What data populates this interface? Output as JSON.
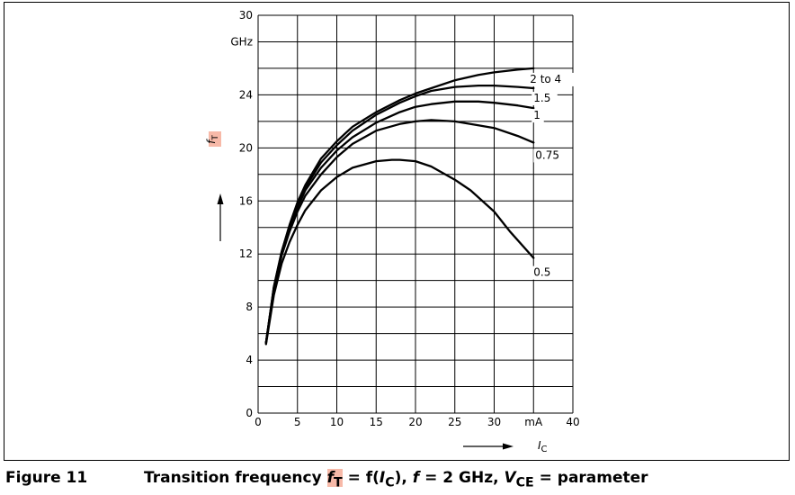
{
  "figure": {
    "label": "Figure 11",
    "title_text": "Transition frequency ",
    "title_sym": "f",
    "title_sym_sub": "T",
    "title_eq": " = f(",
    "title_ic": "I",
    "title_ic_sub": "C",
    "title_mid": "), ",
    "title_f": "f",
    "title_fval": " = 2 GHz, ",
    "title_v": "V",
    "title_v_sub": "CE",
    "title_end": " = parameter"
  },
  "chart_data": {
    "type": "line",
    "xlim": [
      0,
      40
    ],
    "ylim": [
      0,
      30
    ],
    "x_ticks": [
      "0",
      "5",
      "10",
      "15",
      "20",
      "25",
      "30",
      "mA",
      "40"
    ],
    "x_tick_values": [
      0,
      5,
      10,
      15,
      20,
      25,
      30,
      35,
      40
    ],
    "y_ticks": [
      "0",
      "4",
      "8",
      "12",
      "16",
      "20",
      "24",
      "GHz",
      "30"
    ],
    "y_tick_values": [
      0,
      4,
      8,
      12,
      16,
      20,
      24,
      28,
      30
    ],
    "ylabel_sym": "f",
    "ylabel_sub": "T",
    "xlabel_sym": "I",
    "xlabel_sub": "C",
    "grid": true,
    "series": [
      {
        "name": "2 to 4",
        "points": [
          [
            1,
            5.3
          ],
          [
            2,
            9.5
          ],
          [
            3,
            12.2
          ],
          [
            4,
            14.2
          ],
          [
            5,
            15.9
          ],
          [
            6,
            17.2
          ],
          [
            8,
            19.2
          ],
          [
            10,
            20.5
          ],
          [
            12,
            21.6
          ],
          [
            15,
            22.7
          ],
          [
            18,
            23.6
          ],
          [
            20,
            24.1
          ],
          [
            22,
            24.5
          ],
          [
            25,
            25.1
          ],
          [
            28,
            25.5
          ],
          [
            30,
            25.7
          ],
          [
            33,
            25.9
          ],
          [
            35,
            26.0
          ]
        ]
      },
      {
        "name": "1.5",
        "points": [
          [
            1,
            5.3
          ],
          [
            2,
            9.5
          ],
          [
            3,
            12.2
          ],
          [
            4,
            14.1
          ],
          [
            5,
            15.7
          ],
          [
            6,
            17.0
          ],
          [
            8,
            18.9
          ],
          [
            10,
            20.2
          ],
          [
            12,
            21.3
          ],
          [
            15,
            22.5
          ],
          [
            18,
            23.4
          ],
          [
            20,
            23.9
          ],
          [
            22,
            24.3
          ],
          [
            25,
            24.6
          ],
          [
            28,
            24.7
          ],
          [
            30,
            24.7
          ],
          [
            33,
            24.6
          ],
          [
            35,
            24.5
          ]
        ]
      },
      {
        "name": "1",
        "points": [
          [
            1,
            5.3
          ],
          [
            2,
            9.4
          ],
          [
            3,
            12.0
          ],
          [
            4,
            13.9
          ],
          [
            5,
            15.5
          ],
          [
            6,
            16.8
          ],
          [
            8,
            18.5
          ],
          [
            10,
            19.8
          ],
          [
            12,
            20.8
          ],
          [
            15,
            21.9
          ],
          [
            18,
            22.7
          ],
          [
            20,
            23.1
          ],
          [
            22,
            23.3
          ],
          [
            25,
            23.5
          ],
          [
            28,
            23.5
          ],
          [
            30,
            23.4
          ],
          [
            33,
            23.2
          ],
          [
            35,
            23.0
          ]
        ]
      },
      {
        "name": "0.75",
        "points": [
          [
            1,
            5.3
          ],
          [
            2,
            9.3
          ],
          [
            3,
            11.9
          ],
          [
            4,
            13.7
          ],
          [
            5,
            15.2
          ],
          [
            6,
            16.4
          ],
          [
            8,
            18.0
          ],
          [
            10,
            19.3
          ],
          [
            12,
            20.3
          ],
          [
            15,
            21.3
          ],
          [
            18,
            21.8
          ],
          [
            20,
            22.0
          ],
          [
            22,
            22.1
          ],
          [
            25,
            22.0
          ],
          [
            28,
            21.7
          ],
          [
            30,
            21.5
          ],
          [
            33,
            20.9
          ],
          [
            35,
            20.4
          ]
        ]
      },
      {
        "name": "0.5",
        "points": [
          [
            1,
            5.2
          ],
          [
            2,
            8.9
          ],
          [
            3,
            11.3
          ],
          [
            4,
            12.9
          ],
          [
            5,
            14.2
          ],
          [
            6,
            15.3
          ],
          [
            8,
            16.8
          ],
          [
            10,
            17.8
          ],
          [
            12,
            18.5
          ],
          [
            15,
            19.0
          ],
          [
            17,
            19.1
          ],
          [
            18,
            19.1
          ],
          [
            20,
            19.0
          ],
          [
            22,
            18.6
          ],
          [
            25,
            17.6
          ],
          [
            27,
            16.8
          ],
          [
            30,
            15.2
          ],
          [
            32,
            13.7
          ],
          [
            35,
            11.7
          ]
        ]
      }
    ]
  }
}
